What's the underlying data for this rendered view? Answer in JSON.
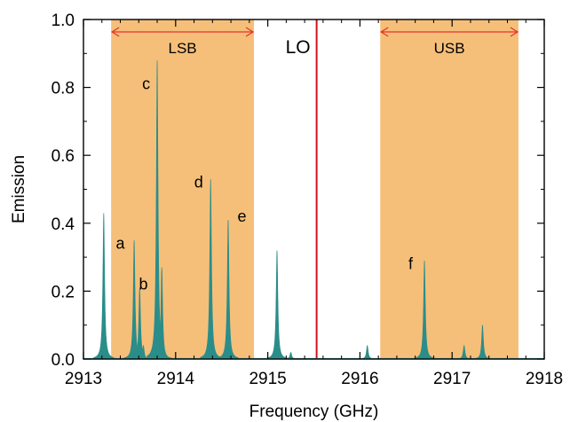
{
  "chart_data": {
    "type": "line",
    "xlabel": "Frequency (GHz)",
    "ylabel": "Emission",
    "xlim": [
      2913,
      2918
    ],
    "ylim": [
      0,
      1.0
    ],
    "x_ticks": [
      "2913",
      "2914",
      "2915",
      "2916",
      "2917",
      "2918"
    ],
    "y_ticks": [
      "0.0",
      "0.2",
      "0.4",
      "0.6",
      "0.8",
      "1.0"
    ],
    "grid": false,
    "fill_color": "#2a8d8a",
    "sidebands": [
      {
        "label": "LSB",
        "x_start": 2913.3,
        "x_end": 2914.85,
        "color": "#f5bf7a",
        "arrow_color": "#e8332b"
      },
      {
        "label": "USB",
        "x_start": 2916.22,
        "x_end": 2917.72,
        "color": "#f5bf7a",
        "arrow_color": "#e8332b"
      }
    ],
    "lo_line": {
      "label": "LO",
      "x": 2915.53,
      "color": "#d0121b"
    },
    "series": [
      {
        "x": [
          2913.22,
          2913.55,
          2913.61,
          2913.65,
          2913.8,
          2913.85,
          2914.38,
          2914.57,
          2915.1,
          2915.25,
          2916.08,
          2916.7,
          2917.13,
          2917.33
        ],
        "values": [
          0.43,
          0.35,
          0.21,
          0.04,
          0.88,
          0.27,
          0.53,
          0.41,
          0.32,
          0.02,
          0.04,
          0.29,
          0.04,
          0.1
        ]
      }
    ],
    "annotations": [
      {
        "text": "a",
        "x": 2913.4,
        "y": 0.325
      },
      {
        "text": "b",
        "x": 2913.65,
        "y": 0.205
      },
      {
        "text": "c",
        "x": 2913.68,
        "y": 0.795
      },
      {
        "text": "d",
        "x": 2914.25,
        "y": 0.505
      },
      {
        "text": "e",
        "x": 2914.72,
        "y": 0.405
      },
      {
        "text": "f",
        "x": 2916.55,
        "y": 0.265
      }
    ]
  }
}
